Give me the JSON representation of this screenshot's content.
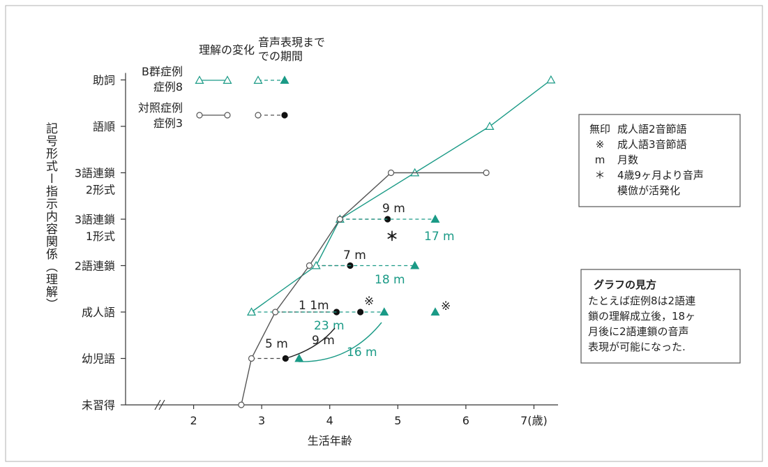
{
  "chart_data": {
    "type": "line",
    "xlabel": "生活年齢",
    "xlim": [
      1.0,
      7.6
    ],
    "x_ticks": [
      {
        "value": 2,
        "label": "2"
      },
      {
        "value": 3,
        "label": "3"
      },
      {
        "value": 4,
        "label": "4"
      },
      {
        "value": 5,
        "label": "5"
      },
      {
        "value": 6,
        "label": "6"
      },
      {
        "value": 7,
        "label": "7(歳)"
      }
    ],
    "axis_break": "//",
    "ylabel": "記号形式ー指示内容関係（理解）",
    "y_categories": [
      [
        "未習得"
      ],
      [
        "幼児語"
      ],
      [
        "成人語"
      ],
      [
        "2語連鎖"
      ],
      [
        "3語連鎖",
        "1形式"
      ],
      [
        "3語連鎖",
        "2形式"
      ],
      [
        "語順"
      ],
      [
        "助詞"
      ]
    ],
    "series": [
      {
        "name": "B群症例 症例8",
        "color": "#1a9a86",
        "marker": "triangle",
        "points": [
          [
            2.85,
            2
          ],
          [
            3.8,
            3
          ],
          [
            4.15,
            4
          ],
          [
            5.25,
            5
          ],
          [
            6.35,
            6
          ],
          [
            7.25,
            7
          ]
        ]
      },
      {
        "name": "対照症例 症例3",
        "color": "#555555",
        "marker": "circle",
        "points": [
          [
            2.7,
            0
          ],
          [
            2.85,
            1
          ],
          [
            3.2,
            2
          ],
          [
            3.7,
            3
          ],
          [
            4.15,
            4
          ],
          [
            4.9,
            5
          ],
          [
            6.3,
            5
          ]
        ]
      }
    ],
    "onset_intervals": [
      {
        "series": "対照症例 症例3",
        "x0": 2.85,
        "x1": 3.35,
        "y": 1,
        "label": "5 m"
      },
      {
        "series": "対照症例 症例3",
        "x0": 3.2,
        "x1": 4.1,
        "y": 2,
        "label": "1 1m"
      },
      {
        "series": "対照症例 症例3",
        "x0": 3.7,
        "x1": 4.3,
        "y": 3,
        "label": "7 m"
      },
      {
        "series": "対照症例 症例3",
        "x0": 4.15,
        "x1": 4.85,
        "y": 4,
        "label": "9 m"
      },
      {
        "series": "B群症例 症例8",
        "x0": 2.85,
        "x1": 4.8,
        "y": 2,
        "label": "23 m"
      },
      {
        "series": "B群症例 症例8",
        "x0": 3.8,
        "x1": 5.25,
        "y": 3,
        "label": "18 m"
      },
      {
        "series": "B群症例 症例8",
        "x0": 4.15,
        "x1": 5.55,
        "y": 4,
        "label": "17 m"
      }
    ],
    "extra_points": [
      {
        "series": "対照症例 症例3",
        "x": 4.45,
        "y": 2,
        "mark": "※"
      },
      {
        "series": "B群症例 症例8",
        "x": 5.55,
        "y": 2,
        "mark": "※"
      },
      {
        "series": "B群症例 症例8",
        "x": 3.55,
        "y": 1,
        "mark": ""
      }
    ],
    "curved_intervals": [
      {
        "series": "対照症例 症例3",
        "label": "9 m"
      },
      {
        "series": "B群症例 症例8",
        "label": "16 m"
      }
    ],
    "extra_marks": [
      "＊"
    ],
    "legend": {
      "headers": [
        "理解の変化",
        "音声表現まで",
        "での期間"
      ],
      "entries": [
        {
          "series": "B群症例 症例8",
          "lines": [
            "B群症例",
            "症例8"
          ]
        },
        {
          "series": "対照症例 症例3",
          "lines": [
            "対照症例",
            "症例3"
          ]
        }
      ]
    },
    "notes_box": {
      "rows": [
        [
          "無印",
          "成人語2音節語"
        ],
        [
          "※",
          "成人語3音節語"
        ],
        [
          "m",
          "月数"
        ],
        [
          "＊",
          "4歳9ヶ月より音声"
        ],
        [
          "",
          "模倣が活発化"
        ]
      ]
    },
    "explanation_box": {
      "title": "グラフの見方",
      "lines": [
        "たとえば症例8は2語連",
        "鎖の理解成立後，18ヶ",
        "月後に2語連鎖の音声",
        "表現が可能になった."
      ]
    },
    "grid": false
  }
}
